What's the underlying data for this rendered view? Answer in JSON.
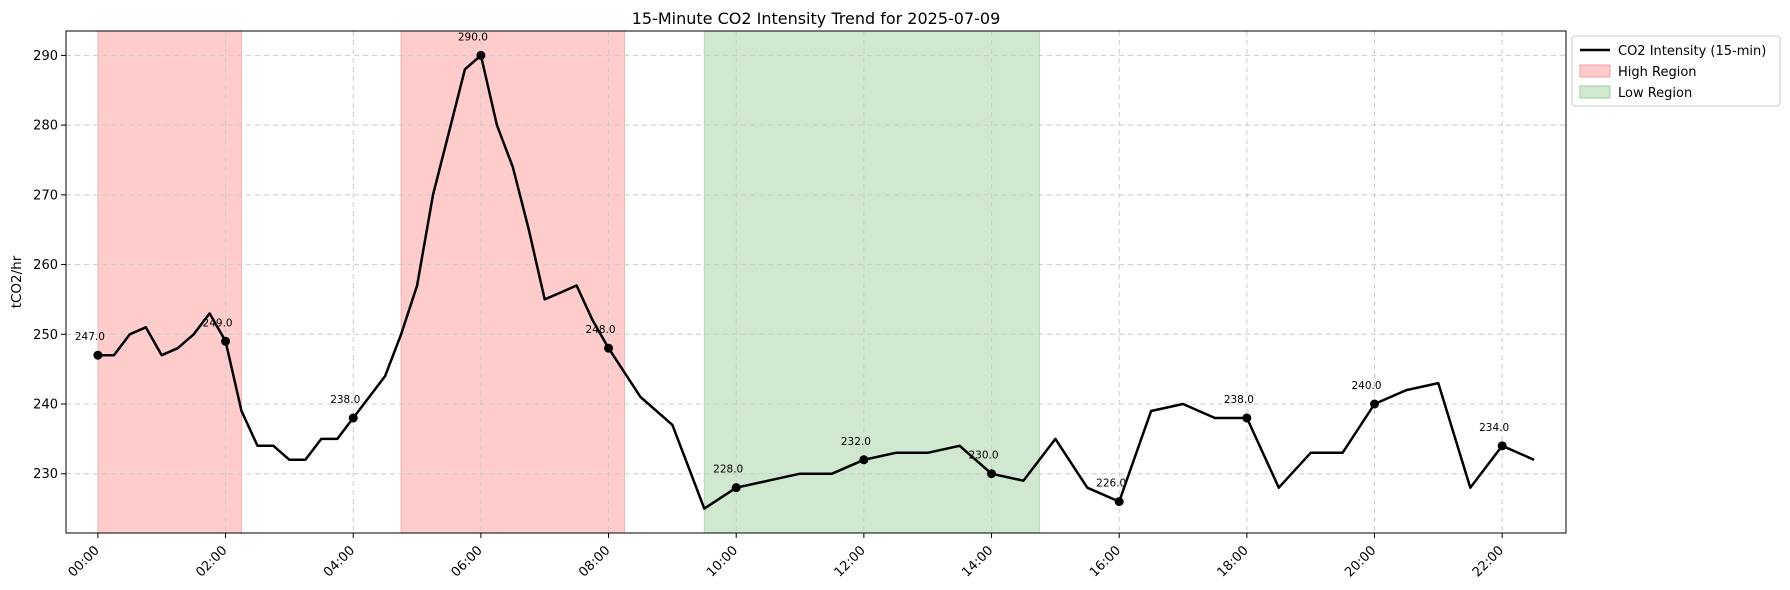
{
  "chart_data": {
    "type": "line",
    "title": "15-Minute CO2 Intensity Trend for 2025-07-09",
    "xlabel": "",
    "ylabel": "tCO2/hr",
    "ylim": [
      221.5,
      293.5
    ],
    "xlim": [
      "-00:30",
      "23:00"
    ],
    "yticks": [
      230,
      240,
      250,
      260,
      270,
      280,
      290
    ],
    "xticks": [
      "00:00",
      "02:00",
      "04:00",
      "06:00",
      "08:00",
      "10:00",
      "12:00",
      "14:00",
      "16:00",
      "18:00",
      "20:00",
      "22:00"
    ],
    "grid": true,
    "legend_position": "outside-top-right",
    "colors": {
      "line": "#000000",
      "high": "#ff9a9a",
      "low": "#9fd19f",
      "grid": "#cccccc"
    },
    "series": [
      {
        "name": "CO2 Intensity (15-min)",
        "x": [
          "00:00",
          "00:15",
          "00:30",
          "00:45",
          "01:00",
          "01:15",
          "01:30",
          "01:45",
          "02:00",
          "02:15",
          "02:30",
          "02:45",
          "03:00",
          "03:15",
          "03:30",
          "03:45",
          "04:00",
          "04:15",
          "04:30",
          "04:45",
          "05:00",
          "05:15",
          "05:30",
          "05:45",
          "06:00",
          "06:15",
          "06:30",
          "06:45",
          "07:00",
          "07:15",
          "07:30",
          "07:45",
          "08:00",
          "08:30",
          "09:00",
          "09:30",
          "10:00",
          "10:30",
          "11:00",
          "11:30",
          "12:00",
          "12:30",
          "13:00",
          "13:30",
          "14:00",
          "14:30",
          "15:00",
          "15:30",
          "16:00",
          "16:30",
          "17:00",
          "17:30",
          "18:00",
          "18:30",
          "19:00",
          "19:30",
          "20:00",
          "20:30",
          "21:00",
          "21:30",
          "22:00",
          "22:30"
        ],
        "values": [
          247,
          247,
          250,
          251,
          247,
          248,
          250,
          253,
          249,
          239,
          234,
          234,
          232,
          232,
          235,
          235,
          238,
          241,
          244,
          250,
          257,
          270,
          279,
          288,
          290,
          280,
          274,
          265,
          255,
          256,
          257,
          252,
          248,
          241,
          237,
          225,
          228,
          229,
          230,
          230,
          232,
          233,
          233,
          234,
          230,
          229,
          235,
          228,
          226,
          239,
          240,
          238,
          238,
          228,
          233,
          233,
          240,
          242,
          243,
          228,
          234,
          232
        ]
      }
    ],
    "highlighted_points": [
      {
        "x": "00:00",
        "y": 247,
        "label": "247.0"
      },
      {
        "x": "02:00",
        "y": 249,
        "label": "249.0"
      },
      {
        "x": "04:00",
        "y": 238,
        "label": "238.0"
      },
      {
        "x": "06:00",
        "y": 290,
        "label": "290.0"
      },
      {
        "x": "08:00",
        "y": 248,
        "label": "248.0"
      },
      {
        "x": "10:00",
        "y": 228,
        "label": "228.0"
      },
      {
        "x": "12:00",
        "y": 232,
        "label": "232.0"
      },
      {
        "x": "14:00",
        "y": 230,
        "label": "230.0"
      },
      {
        "x": "16:00",
        "y": 226,
        "label": "226.0"
      },
      {
        "x": "18:00",
        "y": 238,
        "label": "238.0"
      },
      {
        "x": "20:00",
        "y": 240,
        "label": "240.0"
      },
      {
        "x": "22:00",
        "y": 234,
        "label": "234.0"
      }
    ],
    "regions": [
      {
        "name": "High Region",
        "type": "high",
        "start": "00:00",
        "end": "02:15"
      },
      {
        "name": "High Region",
        "type": "high",
        "start": "04:45",
        "end": "08:15"
      },
      {
        "name": "Low Region",
        "type": "low",
        "start": "09:30",
        "end": "14:45"
      }
    ],
    "legend": [
      {
        "label": "CO2 Intensity (15-min)",
        "kind": "line"
      },
      {
        "label": "High Region",
        "kind": "high"
      },
      {
        "label": "Low Region",
        "kind": "low"
      }
    ]
  }
}
